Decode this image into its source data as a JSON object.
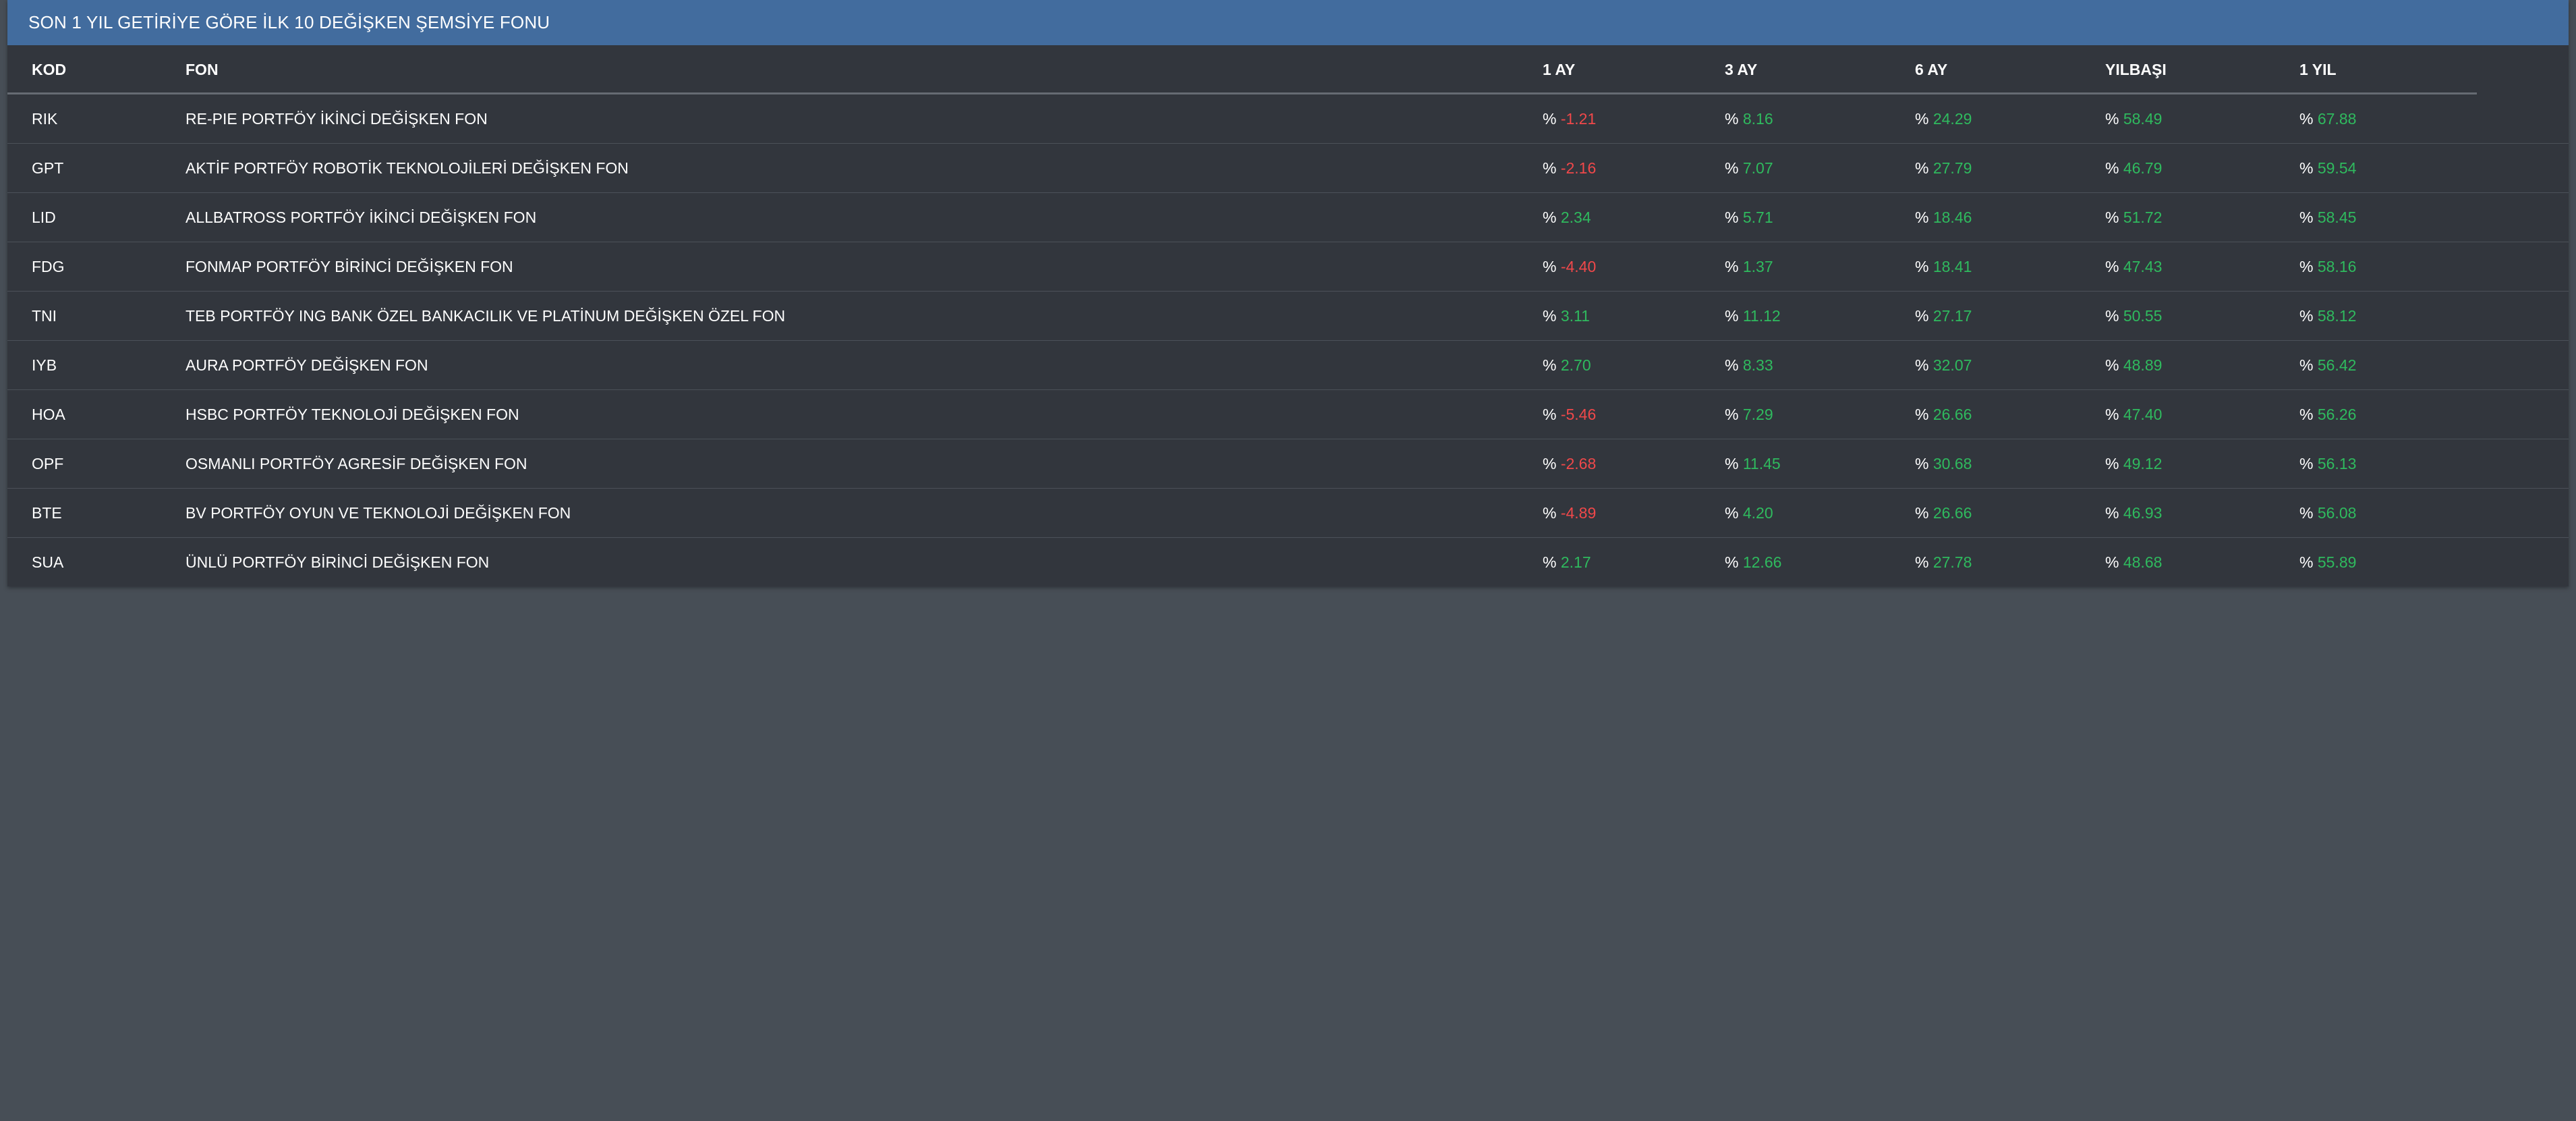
{
  "header": {
    "title": "SON 1 YIL GETİRİYE GÖRE İLK 10 DEĞİŞKEN ŞEMSİYE FONU"
  },
  "colors": {
    "header_bg": "#426c9e",
    "panel_bg": "#32363d",
    "page_bg": "#474e56",
    "positive": "#2fba5e",
    "negative": "#f0484a"
  },
  "table": {
    "columns": [
      "KOD",
      "FON",
      "1 AY",
      "3 AY",
      "6 AY",
      "YILBAŞI",
      "1 YIL"
    ],
    "percent_symbol": "%",
    "rows": [
      {
        "kod": "RIK",
        "fon": "RE-PIE PORTFÖY İKİNCİ DEĞİŞKEN FON",
        "ay1": "-1.21",
        "ay3": "8.16",
        "ay6": "24.29",
        "ytd": "58.49",
        "yil1": "67.88"
      },
      {
        "kod": "GPT",
        "fon": "AKTİF PORTFÖY ROBOTİK TEKNOLOJİLERİ DEĞİŞKEN FON",
        "ay1": "-2.16",
        "ay3": "7.07",
        "ay6": "27.79",
        "ytd": "46.79",
        "yil1": "59.54"
      },
      {
        "kod": "LID",
        "fon": "ALLBATROSS PORTFÖY İKİNCİ DEĞİŞKEN FON",
        "ay1": "2.34",
        "ay3": "5.71",
        "ay6": "18.46",
        "ytd": "51.72",
        "yil1": "58.45"
      },
      {
        "kod": "FDG",
        "fon": "FONMAP PORTFÖY BİRİNCİ DEĞİŞKEN FON",
        "ay1": "-4.40",
        "ay3": "1.37",
        "ay6": "18.41",
        "ytd": "47.43",
        "yil1": "58.16"
      },
      {
        "kod": "TNI",
        "fon": "TEB PORTFÖY ING BANK ÖZEL BANKACILIK VE PLATİNUM DEĞİŞKEN ÖZEL FON",
        "ay1": "3.11",
        "ay3": "11.12",
        "ay6": "27.17",
        "ytd": "50.55",
        "yil1": "58.12"
      },
      {
        "kod": "IYB",
        "fon": "AURA PORTFÖY DEĞİŞKEN FON",
        "ay1": "2.70",
        "ay3": "8.33",
        "ay6": "32.07",
        "ytd": "48.89",
        "yil1": "56.42"
      },
      {
        "kod": "HOA",
        "fon": "HSBC PORTFÖY TEKNOLOJİ DEĞİŞKEN FON",
        "ay1": "-5.46",
        "ay3": "7.29",
        "ay6": "26.66",
        "ytd": "47.40",
        "yil1": "56.26"
      },
      {
        "kod": "OPF",
        "fon": "OSMANLI PORTFÖY AGRESİF DEĞİŞKEN FON",
        "ay1": "-2.68",
        "ay3": "11.45",
        "ay6": "30.68",
        "ytd": "49.12",
        "yil1": "56.13"
      },
      {
        "kod": "BTE",
        "fon": "BV PORTFÖY OYUN VE TEKNOLOJİ DEĞİŞKEN FON",
        "ay1": "-4.89",
        "ay3": "4.20",
        "ay6": "26.66",
        "ytd": "46.93",
        "yil1": "56.08"
      },
      {
        "kod": "SUA",
        "fon": "ÜNLÜ PORTFÖY BİRİNCİ DEĞİŞKEN FON",
        "ay1": "2.17",
        "ay3": "12.66",
        "ay6": "27.78",
        "ytd": "48.68",
        "yil1": "55.89"
      }
    ]
  }
}
